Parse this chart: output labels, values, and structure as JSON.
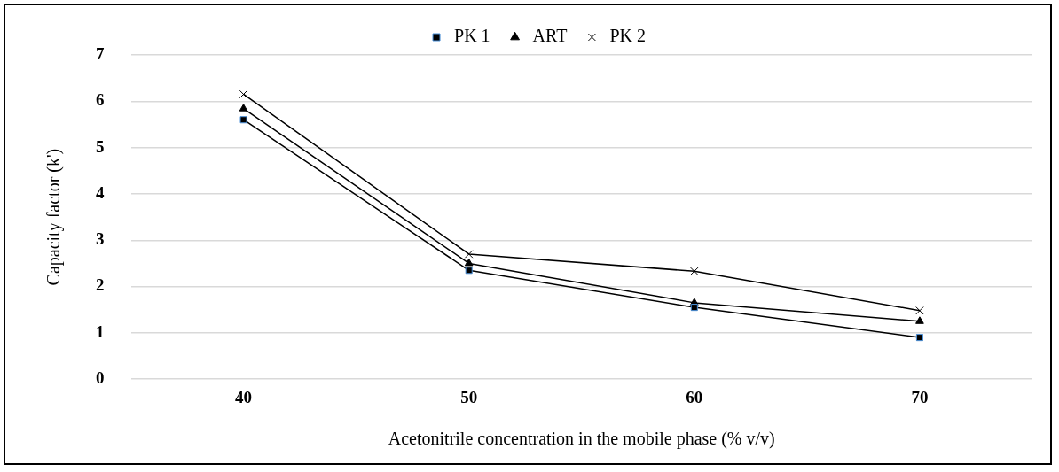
{
  "chart_data": {
    "type": "line",
    "xlabel": "Acetonitrile concentration in the mobile phase (% v/v)",
    "ylabel": "Capacity factor (k')",
    "categories": [
      "40",
      "50",
      "60",
      "70"
    ],
    "series": [
      {
        "name": "PK 1",
        "color": "#000000",
        "marker": "square",
        "values": [
          5.6,
          2.35,
          1.55,
          0.9
        ]
      },
      {
        "name": "ART",
        "color": "#000000",
        "marker": "triangle",
        "values": [
          5.84,
          2.5,
          1.65,
          1.25
        ]
      },
      {
        "name": "PK 2",
        "color": "#000000",
        "marker": "cross",
        "values": [
          6.15,
          2.7,
          2.33,
          1.48
        ]
      }
    ],
    "ylim": [
      0,
      7
    ],
    "yticks": [
      0,
      1,
      2,
      3,
      4,
      5,
      6,
      7
    ],
    "grid": "y",
    "legend": "top",
    "line_style": "solid"
  }
}
